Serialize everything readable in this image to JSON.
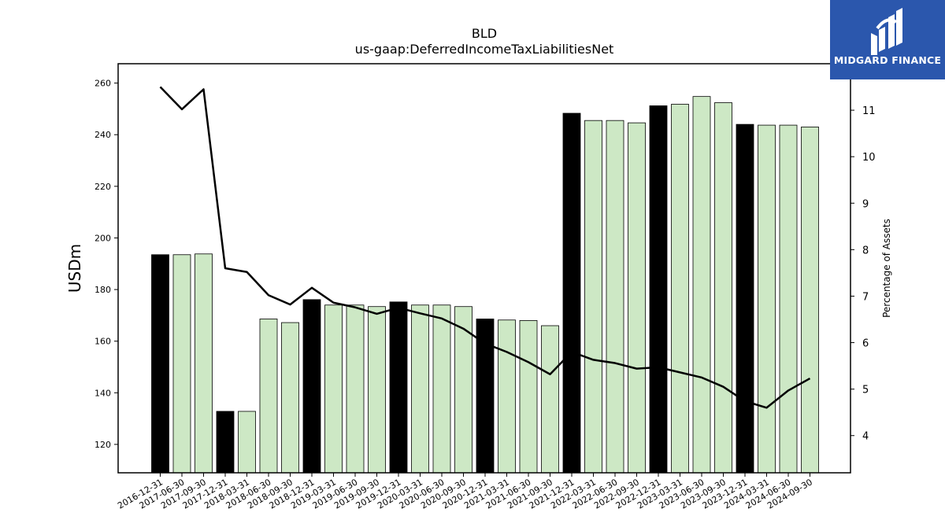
{
  "chart_data": {
    "type": "bar",
    "title": "BLD",
    "subtitle": "us-gaap:DeferredIncomeTaxLiabilitiesNet",
    "ylabel": "USDm",
    "y2label": "Percentage of Assets",
    "ylim": [
      109,
      267.5
    ],
    "y2lim": [
      3.2,
      12.0
    ],
    "yticks": [
      120,
      140,
      160,
      180,
      200,
      220,
      240,
      260
    ],
    "y2ticks": [
      4,
      5,
      6,
      7,
      8,
      9,
      10,
      11
    ],
    "categories": [
      "2016-12-31",
      "2017-06-30",
      "2017-09-30",
      "2017-12-31",
      "2018-03-31",
      "2018-06-30",
      "2018-09-30",
      "2018-12-31",
      "2019-03-31",
      "2019-06-30",
      "2019-09-30",
      "2019-12-31",
      "2020-03-31",
      "2020-06-30",
      "2020-09-30",
      "2020-12-31",
      "2021-03-31",
      "2021-06-30",
      "2021-09-30",
      "2021-12-31",
      "2022-03-31",
      "2022-06-30",
      "2022-09-30",
      "2022-12-31",
      "2023-03-31",
      "2023-06-30",
      "2023-09-30",
      "2023-12-31",
      "2024-03-31",
      "2024-06-30",
      "2024-09-30"
    ],
    "series": [
      {
        "kind": "bar",
        "values": [
          193.5,
          193.5,
          193.8,
          132.8,
          132.8,
          168.6,
          167.2,
          176.1,
          174.0,
          174.0,
          173.4,
          175.2,
          174.0,
          174.0,
          173.4,
          168.6,
          168.2,
          168.0,
          166.0,
          248.3,
          245.5,
          245.5,
          244.6,
          251.2,
          251.8,
          254.8,
          252.4,
          244.0,
          243.7,
          243.7,
          243.0
        ],
        "year_end": [
          true,
          false,
          false,
          true,
          false,
          false,
          false,
          true,
          false,
          false,
          false,
          true,
          false,
          false,
          false,
          true,
          false,
          false,
          false,
          true,
          false,
          false,
          false,
          true,
          false,
          false,
          false,
          true,
          false,
          false,
          false
        ]
      },
      {
        "kind": "line",
        "axis": "right",
        "values": [
          11.5,
          11.02,
          11.45,
          7.6,
          7.52,
          7.02,
          6.82,
          7.18,
          6.86,
          6.76,
          6.62,
          6.75,
          6.63,
          6.52,
          6.3,
          5.98,
          5.8,
          5.58,
          5.32,
          5.8,
          5.63,
          5.56,
          5.44,
          5.47,
          5.36,
          5.25,
          5.05,
          4.74,
          4.6,
          4.97,
          5.23
        ]
      }
    ],
    "colors": {
      "year_end_bar": "#000000",
      "quarter_bar": "#cde8c5",
      "bar_edge": "#000000",
      "line": "#000000"
    }
  },
  "logo": {
    "text": "MIDGARD FINANCE",
    "icon": "midgard-m-logo-icon",
    "background": "#2b57ad"
  }
}
